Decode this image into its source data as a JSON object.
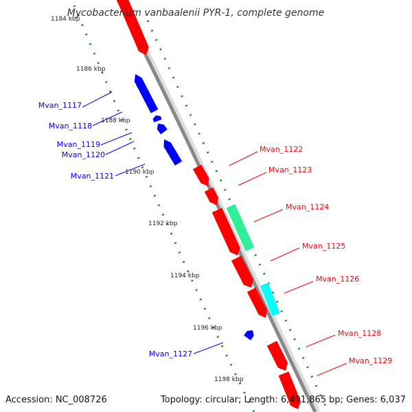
{
  "title": "Mycobacterium vanbaalenii PYR-1, complete genome",
  "accession": "Accession: NC_008726",
  "summary": "Topology: circular; Length: 6,491,865 bp; Genes: 6,037",
  "colors": {
    "reverse_strand": "#0000ff",
    "forward_strand": "#ff0000",
    "highlight_green": "#33ee99",
    "highlight_cyan": "#00ffff",
    "backbone": "#888888",
    "tick_dots": "#008800"
  },
  "ticks": [
    {
      "label": "1184 kbp"
    },
    {
      "label": "1186 kbp"
    },
    {
      "label": "1188 kbp"
    },
    {
      "label": "1190 kbp"
    },
    {
      "label": "1192 kbp"
    },
    {
      "label": "1194 kbp"
    },
    {
      "label": "1196 kbp"
    },
    {
      "label": "1198 kbp"
    }
  ],
  "genes": [
    {
      "name": "Mvan_1117",
      "strand": "reverse"
    },
    {
      "name": "Mvan_1118",
      "strand": "reverse"
    },
    {
      "name": "Mvan_1119",
      "strand": "reverse"
    },
    {
      "name": "Mvan_1120",
      "strand": "reverse"
    },
    {
      "name": "Mvan_1121",
      "strand": "reverse"
    },
    {
      "name": "Mvan_1122",
      "strand": "forward"
    },
    {
      "name": "Mvan_1123",
      "strand": "forward"
    },
    {
      "name": "Mvan_1124",
      "strand": "forward"
    },
    {
      "name": "Mvan_1125",
      "strand": "forward"
    },
    {
      "name": "Mvan_1126",
      "strand": "forward"
    },
    {
      "name": "Mvan_1127",
      "strand": "reverse"
    },
    {
      "name": "Mvan_1128",
      "strand": "forward"
    },
    {
      "name": "Mvan_1129",
      "strand": "forward"
    }
  ]
}
